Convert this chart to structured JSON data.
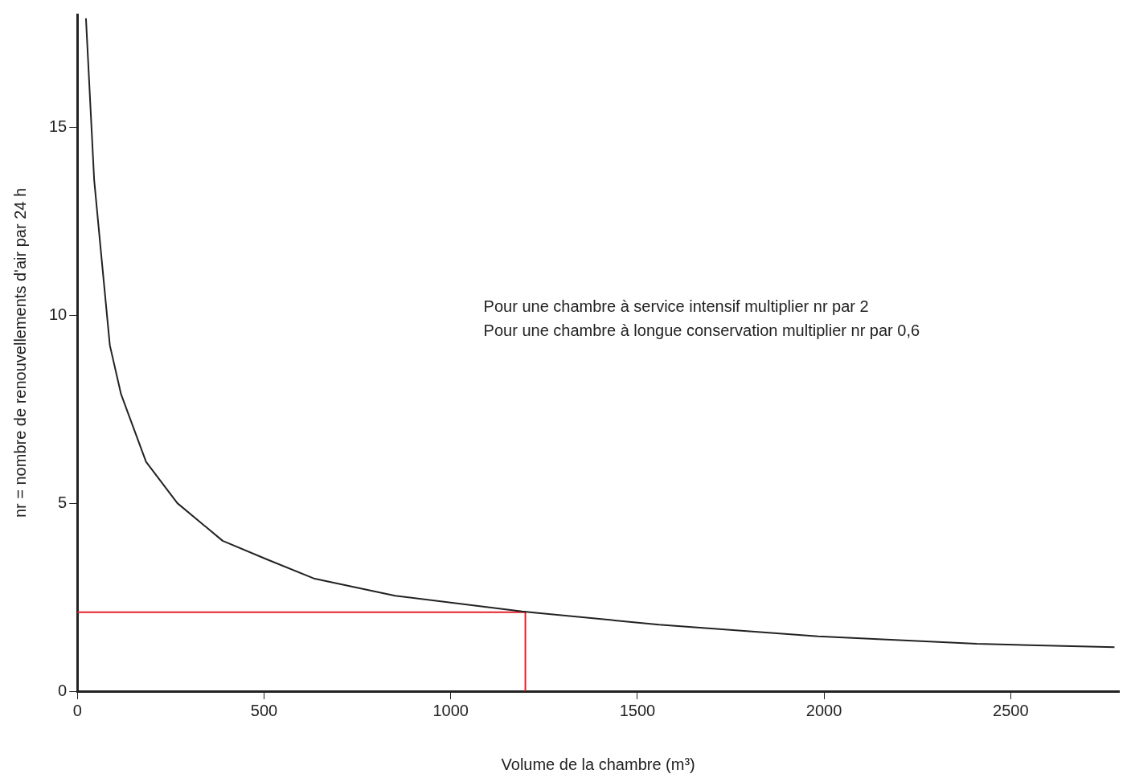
{
  "chart_data": {
    "type": "line",
    "xlabel": "Volume de la chambre (m³)",
    "ylabel": "nr = nombre de renouvellements d'air par 24 h",
    "annotations": [
      "Pour une chambre à service intensif multiplier nr par 2",
      "Pour une chambre à longue conservation multiplier nr par 0,6"
    ],
    "series": [
      {
        "color": "#222222",
        "x": [
          23,
          45,
          63,
          87,
          117,
          184,
          268,
          389,
          509,
          633,
          851,
          1191,
          1558,
          1984,
          2409,
          2778
        ],
        "values": [
          17.9,
          13.6,
          11.7,
          9.2,
          7.9,
          6.1,
          5.0,
          4.0,
          3.5,
          3.0,
          2.54,
          2.12,
          1.77,
          1.46,
          1.26,
          1.17
        ]
      },
      {
        "color": "#e8202a",
        "x": [
          0,
          1200,
          1200
        ],
        "values": [
          2.1,
          2.1,
          0
        ]
      }
    ],
    "xlim": [
      0,
      2790
    ],
    "xticks": [
      0,
      500,
      1000,
      1500,
      2000,
      2500
    ],
    "ylim": [
      0,
      18
    ],
    "yticks": [
      0,
      5,
      10,
      15
    ],
    "grid": false,
    "legend": false,
    "marker": "none",
    "line_style": "solid"
  }
}
